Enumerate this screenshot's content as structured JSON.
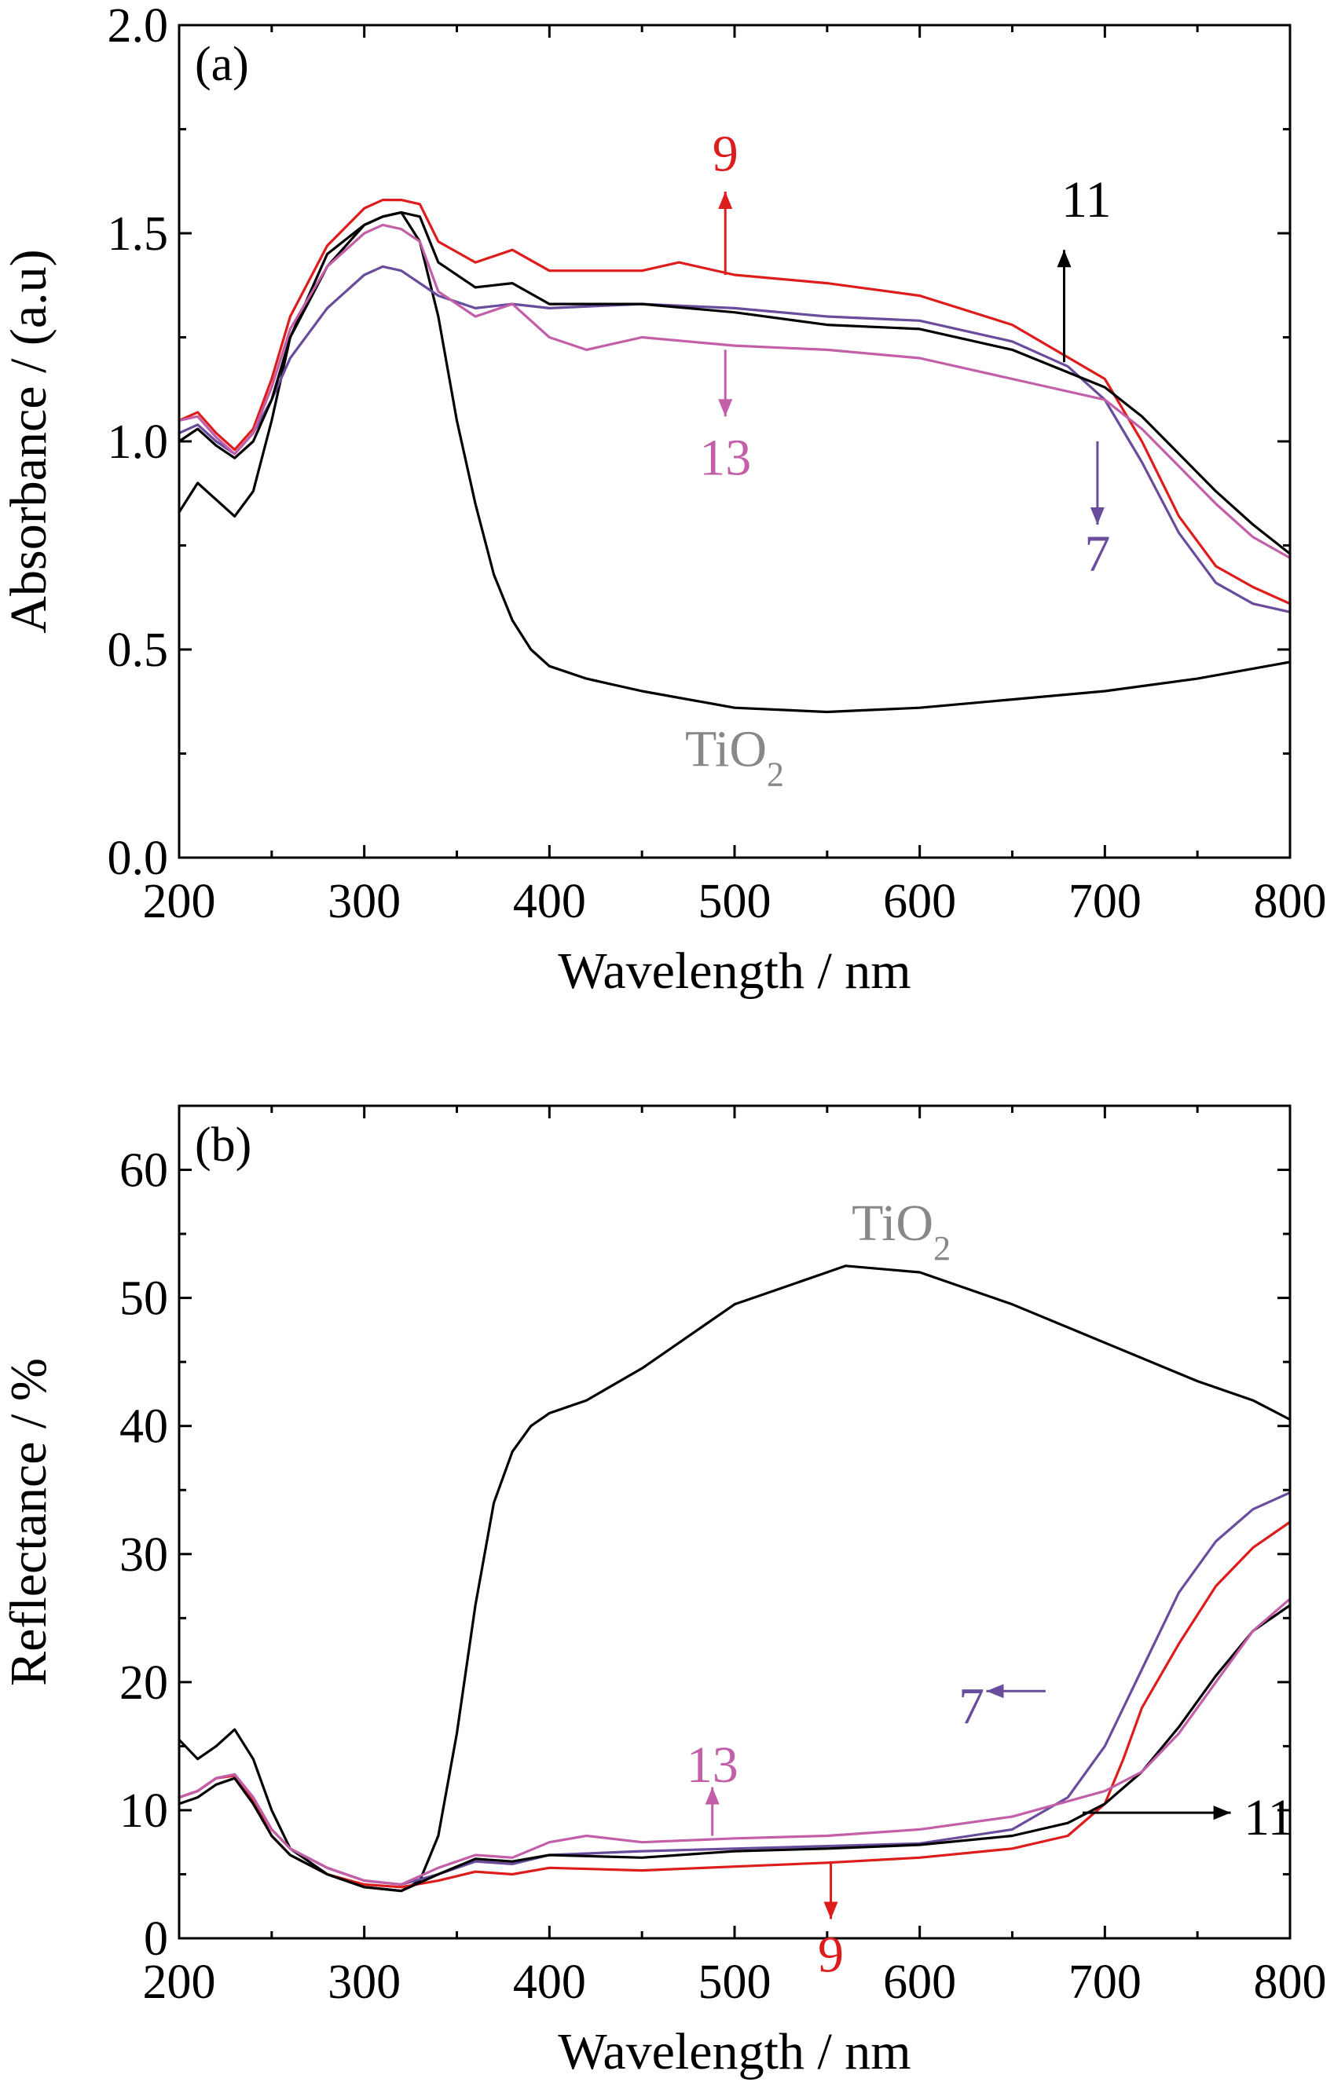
{
  "colors": {
    "TiO2": "#000000",
    "7": "#6a4c9c",
    "9": "#dd1c1c",
    "11": "#000000",
    "13": "#c25fa8",
    "tio2_label": "#888888"
  },
  "chart_data": [
    {
      "type": "line",
      "panel_label": "(a)",
      "xlabel": "Wavelength / nm",
      "ylabel": "Absorbance / (a.u)",
      "xlim": [
        200,
        800
      ],
      "ylim": [
        0,
        2.0
      ],
      "xticks": [
        200,
        300,
        400,
        500,
        600,
        700,
        800
      ],
      "xtick_labels": [
        "200",
        "300",
        "400",
        "500",
        "600",
        "700",
        "800"
      ],
      "yticks": [
        0,
        0.5,
        1.0,
        1.5,
        2.0
      ],
      "ytick_labels": [
        "0.0",
        "0.5",
        "1.0",
        "1.5",
        "2.0"
      ],
      "grid": false,
      "series": [
        {
          "key": "TiO2",
          "x": [
            200,
            210,
            220,
            230,
            240,
            250,
            260,
            280,
            300,
            310,
            320,
            330,
            340,
            350,
            360,
            370,
            380,
            390,
            400,
            420,
            450,
            500,
            550,
            600,
            650,
            700,
            750,
            800
          ],
          "y": [
            0.83,
            0.9,
            0.86,
            0.82,
            0.88,
            1.05,
            1.25,
            1.45,
            1.52,
            1.54,
            1.55,
            1.48,
            1.3,
            1.05,
            0.85,
            0.68,
            0.57,
            0.5,
            0.46,
            0.43,
            0.4,
            0.36,
            0.35,
            0.36,
            0.38,
            0.4,
            0.43,
            0.47
          ]
        },
        {
          "key": "7",
          "x": [
            200,
            210,
            220,
            230,
            240,
            250,
            260,
            280,
            300,
            310,
            320,
            340,
            360,
            380,
            400,
            450,
            500,
            550,
            600,
            650,
            680,
            700,
            720,
            740,
            760,
            780,
            800
          ],
          "y": [
            1.02,
            1.04,
            1.0,
            0.97,
            1.02,
            1.1,
            1.2,
            1.32,
            1.4,
            1.42,
            1.41,
            1.35,
            1.32,
            1.33,
            1.32,
            1.33,
            1.32,
            1.3,
            1.29,
            1.24,
            1.18,
            1.1,
            0.95,
            0.78,
            0.66,
            0.61,
            0.59
          ]
        },
        {
          "key": "9",
          "x": [
            200,
            210,
            220,
            230,
            240,
            250,
            260,
            280,
            300,
            310,
            320,
            330,
            340,
            360,
            380,
            400,
            450,
            470,
            500,
            550,
            600,
            650,
            700,
            720,
            740,
            760,
            780,
            800
          ],
          "y": [
            1.05,
            1.07,
            1.02,
            0.98,
            1.03,
            1.15,
            1.3,
            1.47,
            1.56,
            1.58,
            1.58,
            1.57,
            1.48,
            1.43,
            1.46,
            1.41,
            1.41,
            1.43,
            1.4,
            1.38,
            1.35,
            1.28,
            1.15,
            1.0,
            0.82,
            0.7,
            0.65,
            0.61
          ]
        },
        {
          "key": "11",
          "x": [
            200,
            210,
            220,
            230,
            240,
            250,
            260,
            280,
            300,
            310,
            320,
            330,
            340,
            360,
            380,
            400,
            450,
            500,
            550,
            600,
            650,
            700,
            720,
            740,
            760,
            780,
            800
          ],
          "y": [
            1.0,
            1.03,
            0.99,
            0.96,
            1.0,
            1.1,
            1.25,
            1.42,
            1.52,
            1.54,
            1.55,
            1.54,
            1.43,
            1.37,
            1.38,
            1.33,
            1.33,
            1.31,
            1.28,
            1.27,
            1.22,
            1.13,
            1.06,
            0.97,
            0.88,
            0.8,
            0.73
          ]
        },
        {
          "key": "13",
          "x": [
            200,
            210,
            220,
            230,
            240,
            250,
            260,
            280,
            300,
            310,
            320,
            330,
            340,
            360,
            380,
            400,
            420,
            450,
            500,
            550,
            600,
            650,
            700,
            720,
            740,
            760,
            780,
            800
          ],
          "y": [
            1.05,
            1.06,
            1.01,
            0.97,
            1.02,
            1.13,
            1.27,
            1.42,
            1.5,
            1.52,
            1.51,
            1.48,
            1.36,
            1.3,
            1.33,
            1.25,
            1.22,
            1.25,
            1.23,
            1.22,
            1.2,
            1.15,
            1.1,
            1.03,
            0.94,
            0.85,
            0.77,
            0.72
          ]
        }
      ],
      "annotations": [
        {
          "text": "9",
          "color_key": "9",
          "x": 495,
          "y": 1.65,
          "arrow": "up",
          "ax": 495,
          "ay1": 1.4,
          "ay2": 1.6
        },
        {
          "text": "11",
          "color_key": "11",
          "x": 690,
          "y": 1.54,
          "arrow": "up",
          "ax": 678,
          "ay1": 1.19,
          "ay2": 1.46
        },
        {
          "text": "13",
          "color_key": "13",
          "x": 495,
          "y": 0.92,
          "arrow": "down",
          "ax": 495,
          "ay1": 1.22,
          "ay2": 1.06
        },
        {
          "text": "7",
          "color_key": "7",
          "x": 696,
          "y": 0.69,
          "arrow": "down",
          "ax": 696,
          "ay1": 1.0,
          "ay2": 0.8
        },
        {
          "text": "TiO",
          "sub": "2",
          "color_key": "tio2_label",
          "x": 500,
          "y": 0.22,
          "arrow": "none"
        }
      ]
    },
    {
      "type": "line",
      "panel_label": "(b)",
      "xlabel": "Wavelength / nm",
      "ylabel": "Reflectance / %",
      "xlim": [
        200,
        800
      ],
      "ylim": [
        0,
        65
      ],
      "xticks": [
        200,
        300,
        400,
        500,
        600,
        700,
        800
      ],
      "xtick_labels": [
        "200",
        "300",
        "400",
        "500",
        "600",
        "700",
        "800"
      ],
      "yticks": [
        0,
        10,
        20,
        30,
        40,
        50,
        60
      ],
      "ytick_labels": [
        "0",
        "10",
        "20",
        "30",
        "40",
        "50",
        "60"
      ],
      "grid": false,
      "series": [
        {
          "key": "TiO2",
          "x": [
            200,
            210,
            220,
            230,
            240,
            250,
            260,
            280,
            300,
            320,
            330,
            340,
            350,
            360,
            370,
            380,
            390,
            400,
            420,
            450,
            500,
            550,
            560,
            600,
            650,
            700,
            750,
            780,
            800
          ],
          "y": [
            15.5,
            14.0,
            15.0,
            16.3,
            14.0,
            10.0,
            7.0,
            5.0,
            4.0,
            3.7,
            4.5,
            8.0,
            16.0,
            26.0,
            34.0,
            38.0,
            40.0,
            41.0,
            42.0,
            44.5,
            49.5,
            52.0,
            52.5,
            52.0,
            49.5,
            46.5,
            43.5,
            42.0,
            40.5
          ]
        },
        {
          "key": "7",
          "x": [
            200,
            210,
            220,
            230,
            240,
            250,
            260,
            280,
            300,
            320,
            340,
            360,
            380,
            400,
            450,
            500,
            550,
            600,
            650,
            680,
            700,
            720,
            740,
            760,
            780,
            800
          ],
          "y": [
            11.0,
            11.5,
            12.5,
            12.8,
            11.0,
            8.5,
            7.0,
            5.5,
            4.5,
            4.2,
            5.0,
            6.0,
            5.8,
            6.5,
            6.8,
            7.0,
            7.2,
            7.4,
            8.5,
            11.0,
            15.0,
            21.0,
            27.0,
            31.0,
            33.5,
            34.8
          ]
        },
        {
          "key": "9",
          "x": [
            200,
            210,
            220,
            230,
            240,
            250,
            260,
            280,
            300,
            320,
            340,
            360,
            380,
            400,
            450,
            500,
            550,
            600,
            650,
            680,
            700,
            710,
            720,
            740,
            760,
            780,
            800
          ],
          "y": [
            11.0,
            11.5,
            12.5,
            12.7,
            10.8,
            8.0,
            6.5,
            5.0,
            4.2,
            4.0,
            4.5,
            5.2,
            5.0,
            5.5,
            5.3,
            5.6,
            5.9,
            6.3,
            7.0,
            8.0,
            10.5,
            14.0,
            18.0,
            23.0,
            27.5,
            30.5,
            32.5
          ]
        },
        {
          "key": "11",
          "x": [
            200,
            210,
            220,
            230,
            240,
            250,
            260,
            280,
            300,
            320,
            340,
            360,
            380,
            400,
            450,
            500,
            550,
            600,
            650,
            680,
            700,
            720,
            740,
            760,
            780,
            800
          ],
          "y": [
            10.5,
            11.0,
            12.0,
            12.5,
            10.5,
            8.0,
            6.5,
            5.0,
            4.0,
            3.7,
            5.0,
            6.2,
            6.0,
            6.5,
            6.3,
            6.8,
            7.0,
            7.3,
            8.0,
            9.0,
            10.5,
            13.0,
            16.5,
            20.5,
            24.0,
            26.0
          ]
        },
        {
          "key": "13",
          "x": [
            200,
            210,
            220,
            230,
            240,
            250,
            260,
            280,
            300,
            320,
            340,
            360,
            380,
            400,
            420,
            450,
            500,
            550,
            600,
            650,
            700,
            720,
            740,
            760,
            780,
            800
          ],
          "y": [
            11.0,
            11.5,
            12.5,
            12.8,
            11.0,
            8.5,
            7.0,
            5.5,
            4.5,
            4.2,
            5.5,
            6.5,
            6.3,
            7.5,
            8.0,
            7.5,
            7.8,
            8.0,
            8.5,
            9.5,
            11.5,
            13.0,
            16.0,
            20.0,
            24.0,
            26.5
          ]
        }
      ],
      "annotations": [
        {
          "text": "TiO",
          "sub": "2",
          "color_key": "tio2_label",
          "x": 590,
          "y": 54.5,
          "arrow": "none"
        },
        {
          "text": "13",
          "color_key": "13",
          "x": 488,
          "y": 12.2,
          "arrow": "up",
          "ax": 488,
          "ay1": 8.0,
          "ay2": 11.8
        },
        {
          "text": "7",
          "color_key": "7",
          "x": 635,
          "y": 16.8,
          "arrow": "left",
          "ax2": 668,
          "ax1": 636,
          "ay": 19.3
        },
        {
          "text": "11",
          "color_key": "11",
          "x": 775,
          "y": 8.1,
          "arrow": "right",
          "ax1": 688,
          "ax2": 768,
          "ay": 9.8
        },
        {
          "text": "9",
          "color_key": "9",
          "x": 552,
          "y": -2.6,
          "arrow": "down",
          "ax": 552,
          "ay1": 6.0,
          "ay2": 1.5
        }
      ]
    }
  ]
}
